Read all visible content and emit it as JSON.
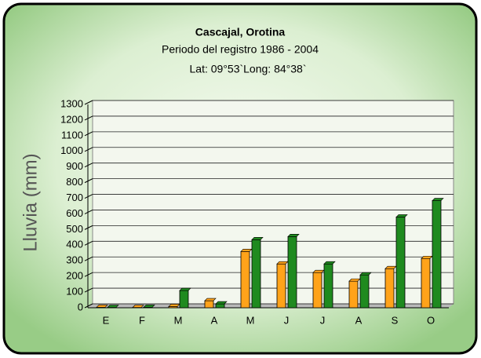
{
  "chart_data": {
    "type": "bar",
    "title": "Cascajal, Orotina",
    "subtitle": "Periodo del registro 1986 - 2004",
    "annotation": "Lat: 09°53`Long: 84°38`",
    "y_label": "Lluvia (mm)",
    "categories": [
      "E",
      "F",
      "M",
      "A",
      "M",
      "J",
      "J",
      "A",
      "S",
      "O"
    ],
    "series": [
      {
        "color": "#ffa31a",
        "values": [
          3,
          2,
          8,
          45,
          360,
          280,
          225,
          170,
          250,
          315
        ]
      },
      {
        "color": "#1f8a1f",
        "values": [
          2,
          3,
          110,
          25,
          435,
          455,
          280,
          210,
          580,
          685
        ]
      }
    ],
    "ylim": [
      0,
      1300
    ],
    "yticks": [
      0,
      100,
      200,
      300,
      400,
      500,
      600,
      700,
      800,
      900,
      1000,
      1100,
      1200,
      1300
    ],
    "grid": true
  }
}
